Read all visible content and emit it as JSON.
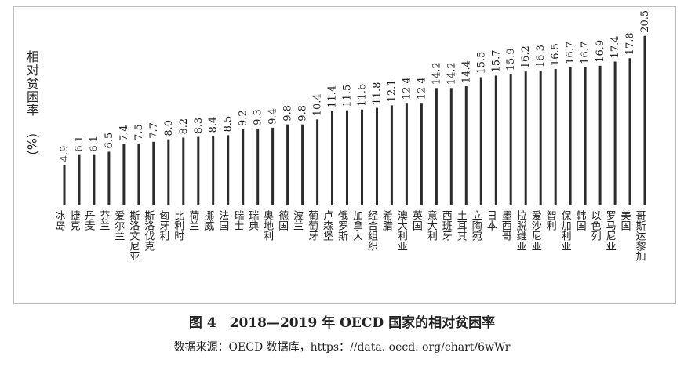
{
  "figure": {
    "caption": "图 4　2018—2019 年 OECD 国家的相对贫困率",
    "source": "数据来源：OECD 数据库，https：//data. oecd. org/chart/6wWr"
  },
  "chart_data": {
    "type": "bar",
    "orientation": "vertical",
    "title": "",
    "ylabel": "相对贫困率（%）",
    "ylabel_text": "相对贫困率",
    "ylabel_unit": "（%）",
    "xlabel": "",
    "ylim": [
      0,
      22
    ],
    "grid": false,
    "legend": "none",
    "bar_color": "#2b2b2b",
    "categories": [
      "冰岛",
      "捷克",
      "丹麦",
      "芬兰",
      "爱尔兰",
      "斯洛文尼亚",
      "斯洛伐克",
      "匈牙利",
      "比利时",
      "荷兰",
      "挪威",
      "法国",
      "瑞士",
      "瑞典",
      "奥地利",
      "德国",
      "波兰",
      "葡萄牙",
      "卢森堡",
      "俄罗斯",
      "加拿大",
      "经合组织",
      "希腊",
      "澳大利亚",
      "英国",
      "意大利",
      "西班牙",
      "土耳其",
      "立陶宛",
      "日本",
      "墨西哥",
      "拉脱维亚",
      "爱沙尼亚",
      "智利",
      "保加利亚",
      "韩国",
      "以色列",
      "罗马尼亚",
      "美国",
      "哥斯达黎加"
    ],
    "values": [
      4.9,
      6.1,
      6.1,
      6.5,
      7.4,
      7.5,
      7.7,
      8.0,
      8.2,
      8.3,
      8.4,
      8.5,
      9.2,
      9.3,
      9.4,
      9.8,
      9.8,
      10.4,
      11.4,
      11.5,
      11.6,
      11.8,
      12.1,
      12.4,
      12.4,
      14.2,
      14.2,
      14.4,
      15.5,
      15.7,
      15.9,
      16.2,
      16.3,
      16.5,
      16.7,
      16.7,
      16.9,
      17.4,
      17.8,
      20.5
    ],
    "value_labels": [
      "4.9",
      "6.1",
      "6.1",
      "6.5",
      "7.4",
      "7.5",
      "7.7",
      "8.0",
      "8.2",
      "8.3",
      "8.4",
      "8.5",
      "9.2",
      "9.3",
      "9.4",
      "9.8",
      "9.8",
      "10.4",
      "11.4",
      "11.5",
      "11.6",
      "11.8",
      "12.1",
      "12.4",
      "12.4",
      "14.2",
      "14.2",
      "14.4",
      "15.5",
      "15.7",
      "15.9",
      "16.2",
      "16.3",
      "16.5",
      "16.7",
      "16.7",
      "16.9",
      "17.4",
      "17.8",
      "20.5"
    ]
  }
}
